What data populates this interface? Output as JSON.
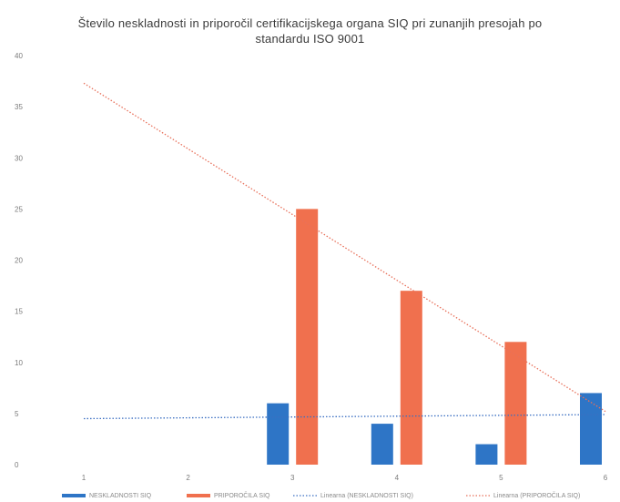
{
  "chart_data": {
    "type": "bar",
    "title_line1": "Število neskladnosti in priporočil certifikacijskega organa SIQ pri zunanjih presojah po",
    "title_line2": "standardu ISO 9001",
    "categories": [
      "1",
      "2",
      "3",
      "4",
      "5",
      "6"
    ],
    "ylim": [
      0,
      40
    ],
    "yticks": [
      "0",
      "5",
      "10",
      "15",
      "20",
      "25",
      "30",
      "35",
      "40"
    ],
    "grid": false,
    "legend_position": "bottom",
    "series": [
      {
        "name": "NESKLADNOSTI SIQ",
        "color": "#2e75c6",
        "values": [
          null,
          null,
          6,
          4,
          2,
          7
        ]
      },
      {
        "name": "PRIPOROČILA SIQ",
        "color": "#f0704e",
        "values": [
          null,
          null,
          25,
          17,
          12,
          null
        ]
      }
    ],
    "trendlines": [
      {
        "name": "Linearna (NESKLADNOSTI SIQ)",
        "color": "#3b6fc2",
        "from": [
          1,
          4.5
        ],
        "to": [
          6,
          4.9
        ]
      },
      {
        "name": "Linearna (PRIPOROČILA SIQ)",
        "color": "#e8705a",
        "from": [
          1,
          37.3
        ],
        "to": [
          6,
          5.2
        ]
      }
    ]
  }
}
